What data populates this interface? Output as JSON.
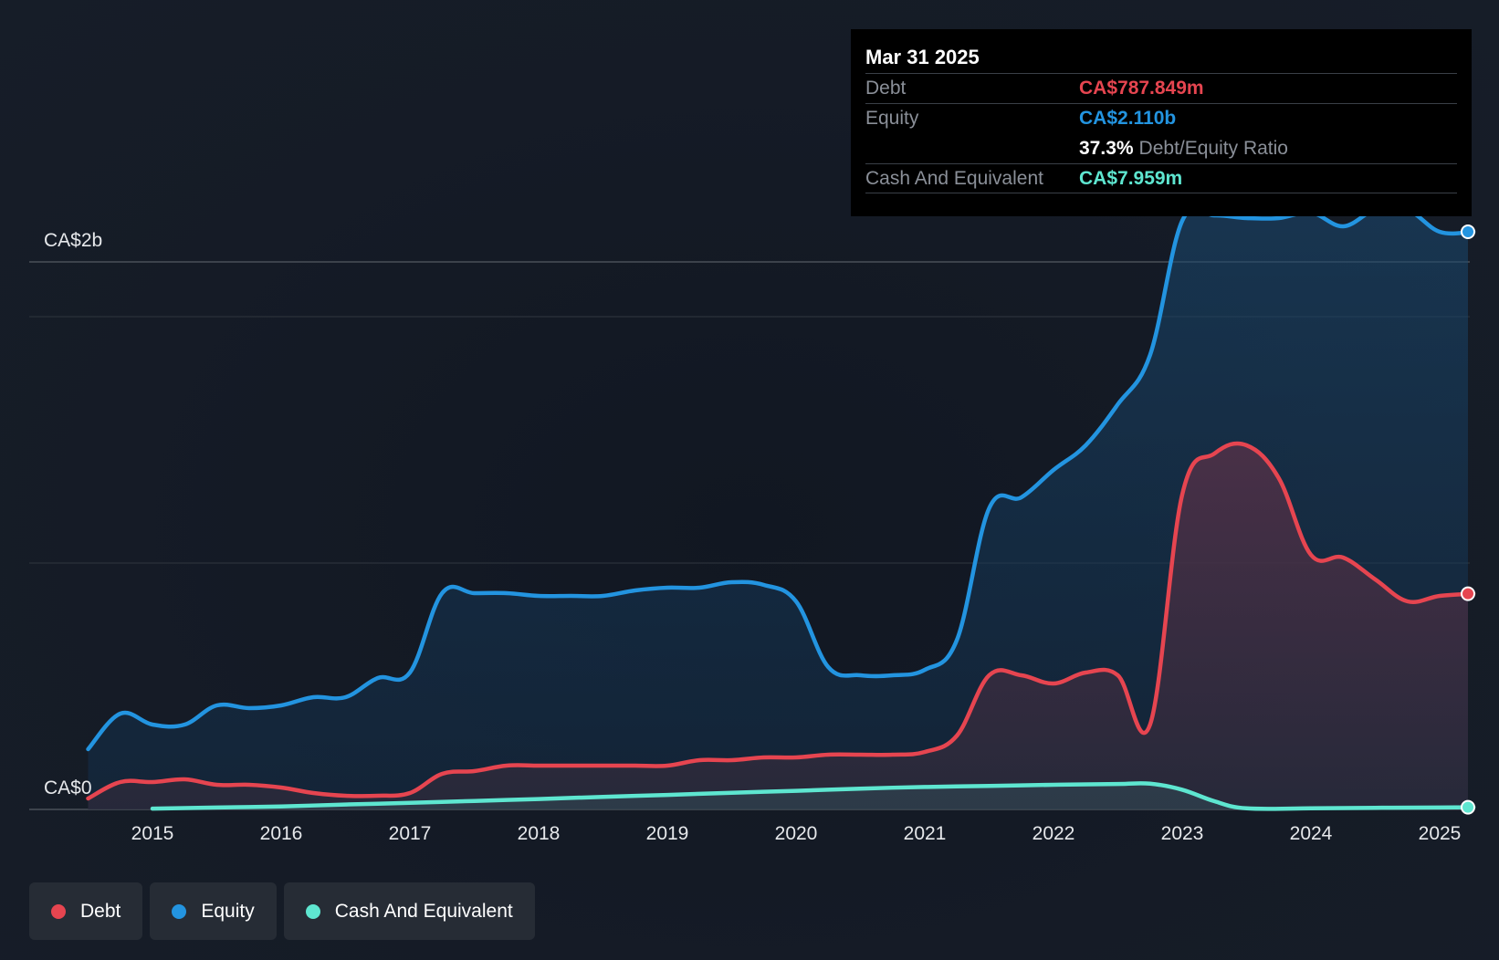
{
  "colors": {
    "debt": "#e64550",
    "equity": "#2394e0",
    "cash": "#5ee6d0",
    "grid": "#3a3f47"
  },
  "tooltip": {
    "date": "Mar 31 2025",
    "debt_label": "Debt",
    "debt_value": "CA$787.849m",
    "equity_label": "Equity",
    "equity_value": "CA$2.110b",
    "ratio_value": "37.3%",
    "ratio_label": "Debt/Equity Ratio",
    "cash_label": "Cash And Equivalent",
    "cash_value": "CA$7.959m"
  },
  "legend": [
    {
      "label": "Debt",
      "color": "#e64550"
    },
    {
      "label": "Equity",
      "color": "#2394e0"
    },
    {
      "label": "Cash And Equivalent",
      "color": "#5ee6d0"
    }
  ],
  "chart_data": {
    "type": "area",
    "y_tick_labels": [
      "CA$0",
      "CA$2b"
    ],
    "x_tick_labels": [
      "2015",
      "2016",
      "2017",
      "2018",
      "2019",
      "2020",
      "2021",
      "2022",
      "2023",
      "2024",
      "2025"
    ],
    "x_ticks": [
      2015,
      2016,
      2017,
      2018,
      2019,
      2020,
      2021,
      2022,
      2023,
      2024,
      2025
    ],
    "ylim": [
      0,
      2.2
    ],
    "y_unit": "CA$ billions",
    "grid": true,
    "series": [
      {
        "name": "Equity",
        "x": [
          2014.5,
          2014.75,
          2015.0,
          2015.25,
          2015.5,
          2015.75,
          2016.0,
          2016.25,
          2016.5,
          2016.75,
          2017.0,
          2017.25,
          2017.5,
          2017.75,
          2018.0,
          2018.25,
          2018.5,
          2018.75,
          2019.0,
          2019.25,
          2019.5,
          2019.75,
          2020.0,
          2020.25,
          2020.5,
          2020.75,
          2021.0,
          2021.25,
          2021.5,
          2021.75,
          2022.0,
          2022.25,
          2022.5,
          2022.75,
          2023.0,
          2023.25,
          2023.5,
          2023.75,
          2024.0,
          2024.25,
          2024.5,
          2024.75,
          2025.0,
          2025.25
        ],
        "values": [
          0.22,
          0.35,
          0.31,
          0.31,
          0.38,
          0.37,
          0.38,
          0.41,
          0.41,
          0.48,
          0.5,
          0.79,
          0.79,
          0.79,
          0.78,
          0.78,
          0.78,
          0.8,
          0.81,
          0.81,
          0.83,
          0.82,
          0.76,
          0.52,
          0.49,
          0.49,
          0.51,
          0.62,
          1.1,
          1.14,
          1.24,
          1.33,
          1.48,
          1.66,
          2.15,
          2.17,
          2.16,
          2.16,
          2.18,
          2.13,
          2.19,
          2.19,
          2.11,
          2.11
        ]
      },
      {
        "name": "Debt",
        "x": [
          2014.5,
          2014.75,
          2015.0,
          2015.25,
          2015.5,
          2015.75,
          2016.0,
          2016.25,
          2016.5,
          2016.75,
          2017.0,
          2017.25,
          2017.5,
          2017.75,
          2018.0,
          2018.25,
          2018.5,
          2018.75,
          2019.0,
          2019.25,
          2019.5,
          2019.75,
          2020.0,
          2020.25,
          2020.5,
          2020.75,
          2021.0,
          2021.25,
          2021.5,
          2021.75,
          2022.0,
          2022.25,
          2022.5,
          2022.75,
          2023.0,
          2023.25,
          2023.5,
          2023.75,
          2024.0,
          2024.25,
          2024.5,
          2024.75,
          2025.0,
          2025.25
        ],
        "values": [
          0.04,
          0.1,
          0.1,
          0.11,
          0.09,
          0.09,
          0.08,
          0.06,
          0.05,
          0.05,
          0.06,
          0.13,
          0.14,
          0.16,
          0.16,
          0.16,
          0.16,
          0.16,
          0.16,
          0.18,
          0.18,
          0.19,
          0.19,
          0.2,
          0.2,
          0.2,
          0.21,
          0.27,
          0.49,
          0.49,
          0.46,
          0.5,
          0.49,
          0.31,
          1.15,
          1.3,
          1.33,
          1.21,
          0.93,
          0.92,
          0.84,
          0.76,
          0.78,
          0.788
        ]
      },
      {
        "name": "Cash And Equivalent",
        "x": [
          2015.0,
          2015.5,
          2016.0,
          2016.5,
          2017.0,
          2017.5,
          2018.0,
          2018.5,
          2019.0,
          2019.5,
          2020.0,
          2020.5,
          2021.0,
          2021.5,
          2022.0,
          2022.5,
          2022.75,
          2023.0,
          2023.25,
          2023.5,
          2024.0,
          2024.5,
          2025.0,
          2025.25
        ],
        "values": [
          0.003,
          0.007,
          0.011,
          0.018,
          0.024,
          0.031,
          0.038,
          0.046,
          0.053,
          0.061,
          0.068,
          0.076,
          0.082,
          0.086,
          0.09,
          0.093,
          0.094,
          0.072,
          0.03,
          0.004,
          0.004,
          0.006,
          0.007,
          0.008
        ]
      }
    ]
  }
}
